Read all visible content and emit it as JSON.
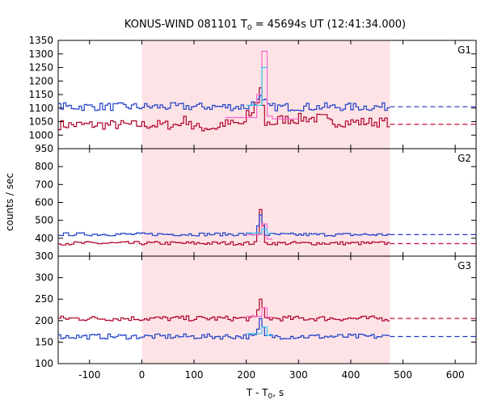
{
  "chart_data": {
    "type": "line",
    "title_prefix": "KONUS-WIND 081101 T",
    "title_subscript": "0",
    "title_suffix": " = 45694s UT (12:41:34.000)",
    "xlabel_prefix": "T - T",
    "xlabel_subscript": "0",
    "xlabel_suffix": ", s",
    "ylabel": "counts / sec",
    "xlim": [
      -160,
      640
    ],
    "x_ticks": [
      -100,
      0,
      100,
      200,
      300,
      400,
      500,
      600
    ],
    "shaded_interval": [
      0,
      475
    ],
    "colors": {
      "main_red": "#b0002a",
      "main_blue": "#1f3fc8",
      "pink": "#ff66cc",
      "cyan": "#33ccee",
      "shade": "#fde3e6",
      "background_dash_red": "#cc1133",
      "background_dash_blue": "#2233cc"
    },
    "panels": [
      {
        "label": "G1",
        "ylim": [
          950,
          1350
        ],
        "y_ticks": [
          950,
          1000,
          1050,
          1100,
          1150,
          1200,
          1250,
          1300,
          1350
        ],
        "background_levels": [
          1040,
          1105
        ],
        "dashed_from_x": 475,
        "series": [
          {
            "color_key": "main_red",
            "step": 5,
            "x": [
              -160,
              475
            ],
            "base": 1040,
            "noise": 18,
            "segments": [
              {
                "x0": -160,
                "x1": 75,
                "level": 1038
              },
              {
                "x0": 75,
                "x1": 95,
                "level": 1055
              },
              {
                "x0": 95,
                "x1": 150,
                "level": 1028
              },
              {
                "x0": 150,
                "x1": 200,
                "level": 1042
              },
              {
                "x0": 200,
                "x1": 215,
                "level": 1075
              },
              {
                "x0": 215,
                "x1": 222,
                "level": 1120
              },
              {
                "x0": 222,
                "x1": 226,
                "level": 1175
              },
              {
                "x0": 226,
                "x1": 230,
                "level": 1178
              },
              {
                "x0": 230,
                "x1": 234,
                "level": 1110
              },
              {
                "x0": 234,
                "x1": 260,
                "level": 1045
              },
              {
                "x0": 260,
                "x1": 300,
                "level": 1058
              },
              {
                "x0": 300,
                "x1": 355,
                "level": 1062
              },
              {
                "x0": 355,
                "x1": 475,
                "level": 1048
              }
            ]
          },
          {
            "color_key": "main_blue",
            "step": 5,
            "base": 1105,
            "noise": 15,
            "segments": [
              {
                "x0": -160,
                "x1": 210,
                "level": 1105
              },
              {
                "x0": 210,
                "x1": 222,
                "level": 1125
              },
              {
                "x0": 222,
                "x1": 226,
                "level": 1145
              },
              {
                "x0": 226,
                "x1": 230,
                "level": 1150
              },
              {
                "x0": 230,
                "x1": 236,
                "level": 1120
              },
              {
                "x0": 236,
                "x1": 475,
                "level": 1104
              }
            ]
          },
          {
            "color_key": "pink",
            "step": 10,
            "segments": [
              {
                "x0": 160,
                "x1": 215,
                "level": 1065
              },
              {
                "x0": 215,
                "x1": 222,
                "level": 1150
              },
              {
                "x0": 222,
                "x1": 226,
                "level": 1200
              },
              {
                "x0": 226,
                "x1": 232,
                "level": 1310
              },
              {
                "x0": 232,
                "x1": 236,
                "level": 1160
              },
              {
                "x0": 236,
                "x1": 250,
                "level": 1070
              },
              {
                "x0": 250,
                "x1": 300,
                "level": 1060
              }
            ]
          },
          {
            "color_key": "cyan",
            "step": 10,
            "segments": [
              {
                "x0": 200,
                "x1": 222,
                "level": 1110
              },
              {
                "x0": 222,
                "x1": 226,
                "level": 1180
              },
              {
                "x0": 226,
                "x1": 232,
                "level": 1250
              },
              {
                "x0": 232,
                "x1": 240,
                "level": 1115
              }
            ]
          }
        ]
      },
      {
        "label": "G2",
        "ylim": [
          300,
          900
        ],
        "y_ticks": [
          300,
          400,
          500,
          600,
          700,
          800
        ],
        "background_levels": [
          370,
          420
        ],
        "dashed_from_x": 475,
        "series": [
          {
            "color_key": "main_red",
            "step": 5,
            "base": 372,
            "noise": 10,
            "segments": [
              {
                "x0": -160,
                "x1": 218,
                "level": 372
              },
              {
                "x0": 218,
                "x1": 222,
                "level": 420
              },
              {
                "x0": 222,
                "x1": 226,
                "level": 560
              },
              {
                "x0": 226,
                "x1": 230,
                "level": 735
              },
              {
                "x0": 230,
                "x1": 234,
                "level": 470
              },
              {
                "x0": 234,
                "x1": 475,
                "level": 372
              }
            ]
          },
          {
            "color_key": "main_blue",
            "step": 5,
            "base": 422,
            "noise": 9,
            "segments": [
              {
                "x0": -160,
                "x1": 218,
                "level": 422
              },
              {
                "x0": 218,
                "x1": 222,
                "level": 470
              },
              {
                "x0": 222,
                "x1": 226,
                "level": 530
              },
              {
                "x0": 226,
                "x1": 230,
                "level": 615
              },
              {
                "x0": 230,
                "x1": 234,
                "level": 480
              },
              {
                "x0": 234,
                "x1": 475,
                "level": 420
              }
            ]
          },
          {
            "color_key": "pink",
            "step": 10,
            "segments": [
              {
                "x0": 200,
                "x1": 222,
                "level": 420
              },
              {
                "x0": 222,
                "x1": 226,
                "level": 690
              },
              {
                "x0": 226,
                "x1": 230,
                "level": 775
              },
              {
                "x0": 230,
                "x1": 236,
                "level": 480
              },
              {
                "x0": 236,
                "x1": 250,
                "level": 395
              }
            ]
          },
          {
            "color_key": "cyan",
            "step": 10,
            "segments": [
              {
                "x0": 200,
                "x1": 222,
                "level": 430
              },
              {
                "x0": 222,
                "x1": 226,
                "level": 560
              },
              {
                "x0": 226,
                "x1": 230,
                "level": 640
              },
              {
                "x0": 230,
                "x1": 236,
                "level": 450
              },
              {
                "x0": 236,
                "x1": 250,
                "level": 425
              }
            ]
          }
        ]
      },
      {
        "label": "G3",
        "ylim": [
          100,
          350
        ],
        "y_ticks": [
          100,
          150,
          200,
          250,
          300
        ],
        "background_levels": [
          205,
          163
        ],
        "dashed_from_x": 475,
        "series": [
          {
            "color_key": "main_red",
            "step": 5,
            "base": 205,
            "noise": 6,
            "segments": [
              {
                "x0": -160,
                "x1": 218,
                "level": 205
              },
              {
                "x0": 218,
                "x1": 222,
                "level": 225
              },
              {
                "x0": 222,
                "x1": 226,
                "level": 250
              },
              {
                "x0": 226,
                "x1": 230,
                "level": 290
              },
              {
                "x0": 230,
                "x1": 234,
                "level": 230
              },
              {
                "x0": 234,
                "x1": 475,
                "level": 205
              }
            ]
          },
          {
            "color_key": "main_blue",
            "step": 5,
            "base": 163,
            "noise": 6,
            "segments": [
              {
                "x0": -160,
                "x1": 218,
                "level": 163
              },
              {
                "x0": 218,
                "x1": 222,
                "level": 180
              },
              {
                "x0": 222,
                "x1": 226,
                "level": 205
              },
              {
                "x0": 226,
                "x1": 230,
                "level": 245
              },
              {
                "x0": 230,
                "x1": 234,
                "level": 185
              },
              {
                "x0": 234,
                "x1": 475,
                "level": 163
              }
            ]
          },
          {
            "color_key": "pink",
            "step": 10,
            "segments": [
              {
                "x0": 200,
                "x1": 222,
                "level": 210
              },
              {
                "x0": 222,
                "x1": 226,
                "level": 280
              },
              {
                "x0": 226,
                "x1": 230,
                "level": 318
              },
              {
                "x0": 230,
                "x1": 236,
                "level": 230
              },
              {
                "x0": 236,
                "x1": 250,
                "level": 208
              }
            ]
          },
          {
            "color_key": "cyan",
            "step": 10,
            "segments": [
              {
                "x0": 200,
                "x1": 222,
                "level": 170
              },
              {
                "x0": 222,
                "x1": 226,
                "level": 230
              },
              {
                "x0": 226,
                "x1": 230,
                "level": 280
              },
              {
                "x0": 230,
                "x1": 236,
                "level": 185
              },
              {
                "x0": 236,
                "x1": 250,
                "level": 165
              }
            ]
          }
        ]
      }
    ]
  }
}
